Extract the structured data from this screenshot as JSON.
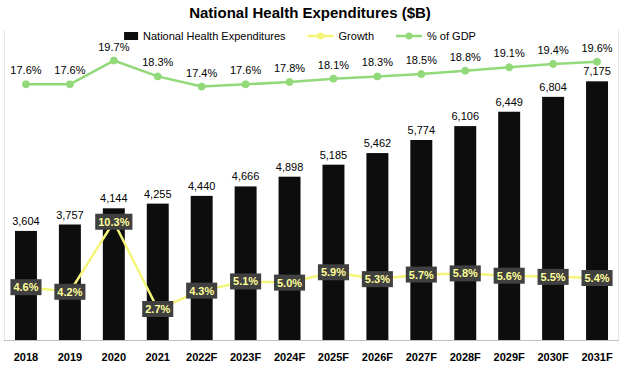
{
  "chart_data": [
    {
      "type": "bar",
      "title": "National Health Expenditures ($B)",
      "categories": [
        "2018",
        "2019",
        "2020",
        "2021",
        "2022F",
        "2023F",
        "2024F",
        "2025F",
        "2026F",
        "2027F",
        "2028F",
        "2029F",
        "2030F",
        "2031F"
      ],
      "series": [
        {
          "name": "National Health Expenditures",
          "type": "bar",
          "color": "#0d0d0d",
          "values": [
            3604,
            3757,
            4144,
            4255,
            4440,
            4666,
            4898,
            5185,
            5462,
            5774,
            6106,
            6449,
            6804,
            7175
          ],
          "value_labels": [
            "3,604",
            "3,757",
            "4,144",
            "4,255",
            "4,440",
            "4,666",
            "4,898",
            "5,185",
            "5,462",
            "5,774",
            "6,106",
            "6,449",
            "6,804",
            "7,175"
          ]
        },
        {
          "name": "Growth",
          "type": "line",
          "color": "#f5f57a",
          "marker": "circle",
          "axis": "y2",
          "values": [
            4.6,
            4.2,
            10.3,
            2.7,
            4.3,
            5.1,
            5.0,
            5.9,
            5.3,
            5.7,
            5.8,
            5.6,
            5.5,
            5.4
          ],
          "value_labels": [
            "4.6%",
            "4.2%",
            "10.3%",
            "2.7%",
            "4.3%",
            "5.1%",
            "5.0%",
            "5.9%",
            "5.3%",
            "5.7%",
            "5.8%",
            "5.6%",
            "5.5%",
            "5.4%"
          ]
        }
      ],
      "ylim": [
        1000,
        8400
      ],
      "y2lim": [
        0,
        27
      ],
      "tick_labels": "x",
      "data_labels": true,
      "legend": "top"
    },
    {
      "type": "line",
      "categories": [
        "2018",
        "2019",
        "2020",
        "2021",
        "2022F",
        "2023F",
        "2024F",
        "2025F",
        "2026F",
        "2027F",
        "2028F",
        "2029F",
        "2030F",
        "2031F"
      ],
      "series": [
        {
          "name": "% of GDP",
          "color": "#92d97a",
          "marker": "circle",
          "values": [
            17.6,
            17.6,
            19.7,
            18.3,
            17.4,
            17.6,
            17.8,
            18.1,
            18.3,
            18.5,
            18.8,
            19.1,
            19.4,
            19.6
          ],
          "value_labels": [
            "17.6%",
            "17.6%",
            "19.7%",
            "18.3%",
            "17.4%",
            "17.6%",
            "17.8%",
            "18.1%",
            "18.3%",
            "18.5%",
            "18.8%",
            "19.1%",
            "19.4%",
            "19.6%"
          ]
        }
      ],
      "ylim": [
        -5,
        22.4
      ],
      "tick_labels": false,
      "data_labels": true
    }
  ]
}
